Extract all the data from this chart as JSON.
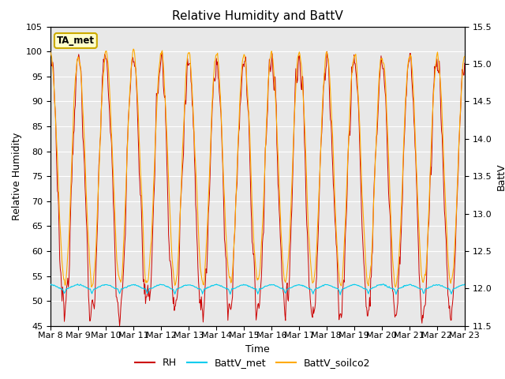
{
  "title": "Relative Humidity and BattV",
  "ylabel_left": "Relative Humidity",
  "ylabel_right": "BattV",
  "xlabel": "Time",
  "ylim_left": [
    45,
    105
  ],
  "ylim_right": [
    11.5,
    15.5
  ],
  "yticks_left": [
    45,
    50,
    55,
    60,
    65,
    70,
    75,
    80,
    85,
    90,
    95,
    100,
    105
  ],
  "yticks_right": [
    11.5,
    12.0,
    12.5,
    13.0,
    13.5,
    14.0,
    14.5,
    15.0,
    15.5
  ],
  "xtick_labels": [
    "Mar 8",
    "Mar 9",
    "Mar 10",
    "Mar 11",
    "Mar 12",
    "Mar 13",
    "Mar 14",
    "Mar 15",
    "Mar 16",
    "Mar 17",
    "Mar 18",
    "Mar 19",
    "Mar 20",
    "Mar 21",
    "Mar 22",
    "Mar 23"
  ],
  "color_RH": "#cc0000",
  "color_battv_met": "#00ccee",
  "color_battv_soilco2": "#ffaa00",
  "legend_label_RH": "RH",
  "legend_label_met": "BattV_met",
  "legend_label_soilco2": "BattV_soilco2",
  "annotation_text": "TA_met",
  "annotation_bg": "#ffffcc",
  "annotation_edge": "#ccaa00",
  "background_color": "#e8e8e8",
  "grid_color": "#ffffff",
  "title_fontsize": 11,
  "axis_label_fontsize": 9,
  "tick_fontsize": 8,
  "legend_fontsize": 9
}
